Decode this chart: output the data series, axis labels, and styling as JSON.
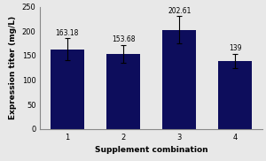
{
  "categories": [
    "1",
    "2",
    "3",
    "4"
  ],
  "values": [
    163.18,
    153.68,
    202.61,
    139
  ],
  "errors": [
    22,
    18,
    28,
    15
  ],
  "bar_color": "#0d0d5c",
  "xlabel": "Supplement combination",
  "ylabel": "Expression titer (mg/L)",
  "ylim": [
    0,
    250
  ],
  "yticks": [
    0,
    50,
    100,
    150,
    200,
    250
  ],
  "labels": [
    "163.18",
    "153.68",
    "202.61",
    "139"
  ],
  "label_fontsize": 5.5,
  "axis_label_fontsize": 6.5,
  "tick_fontsize": 6.0,
  "background_color": "#e8e8e8"
}
